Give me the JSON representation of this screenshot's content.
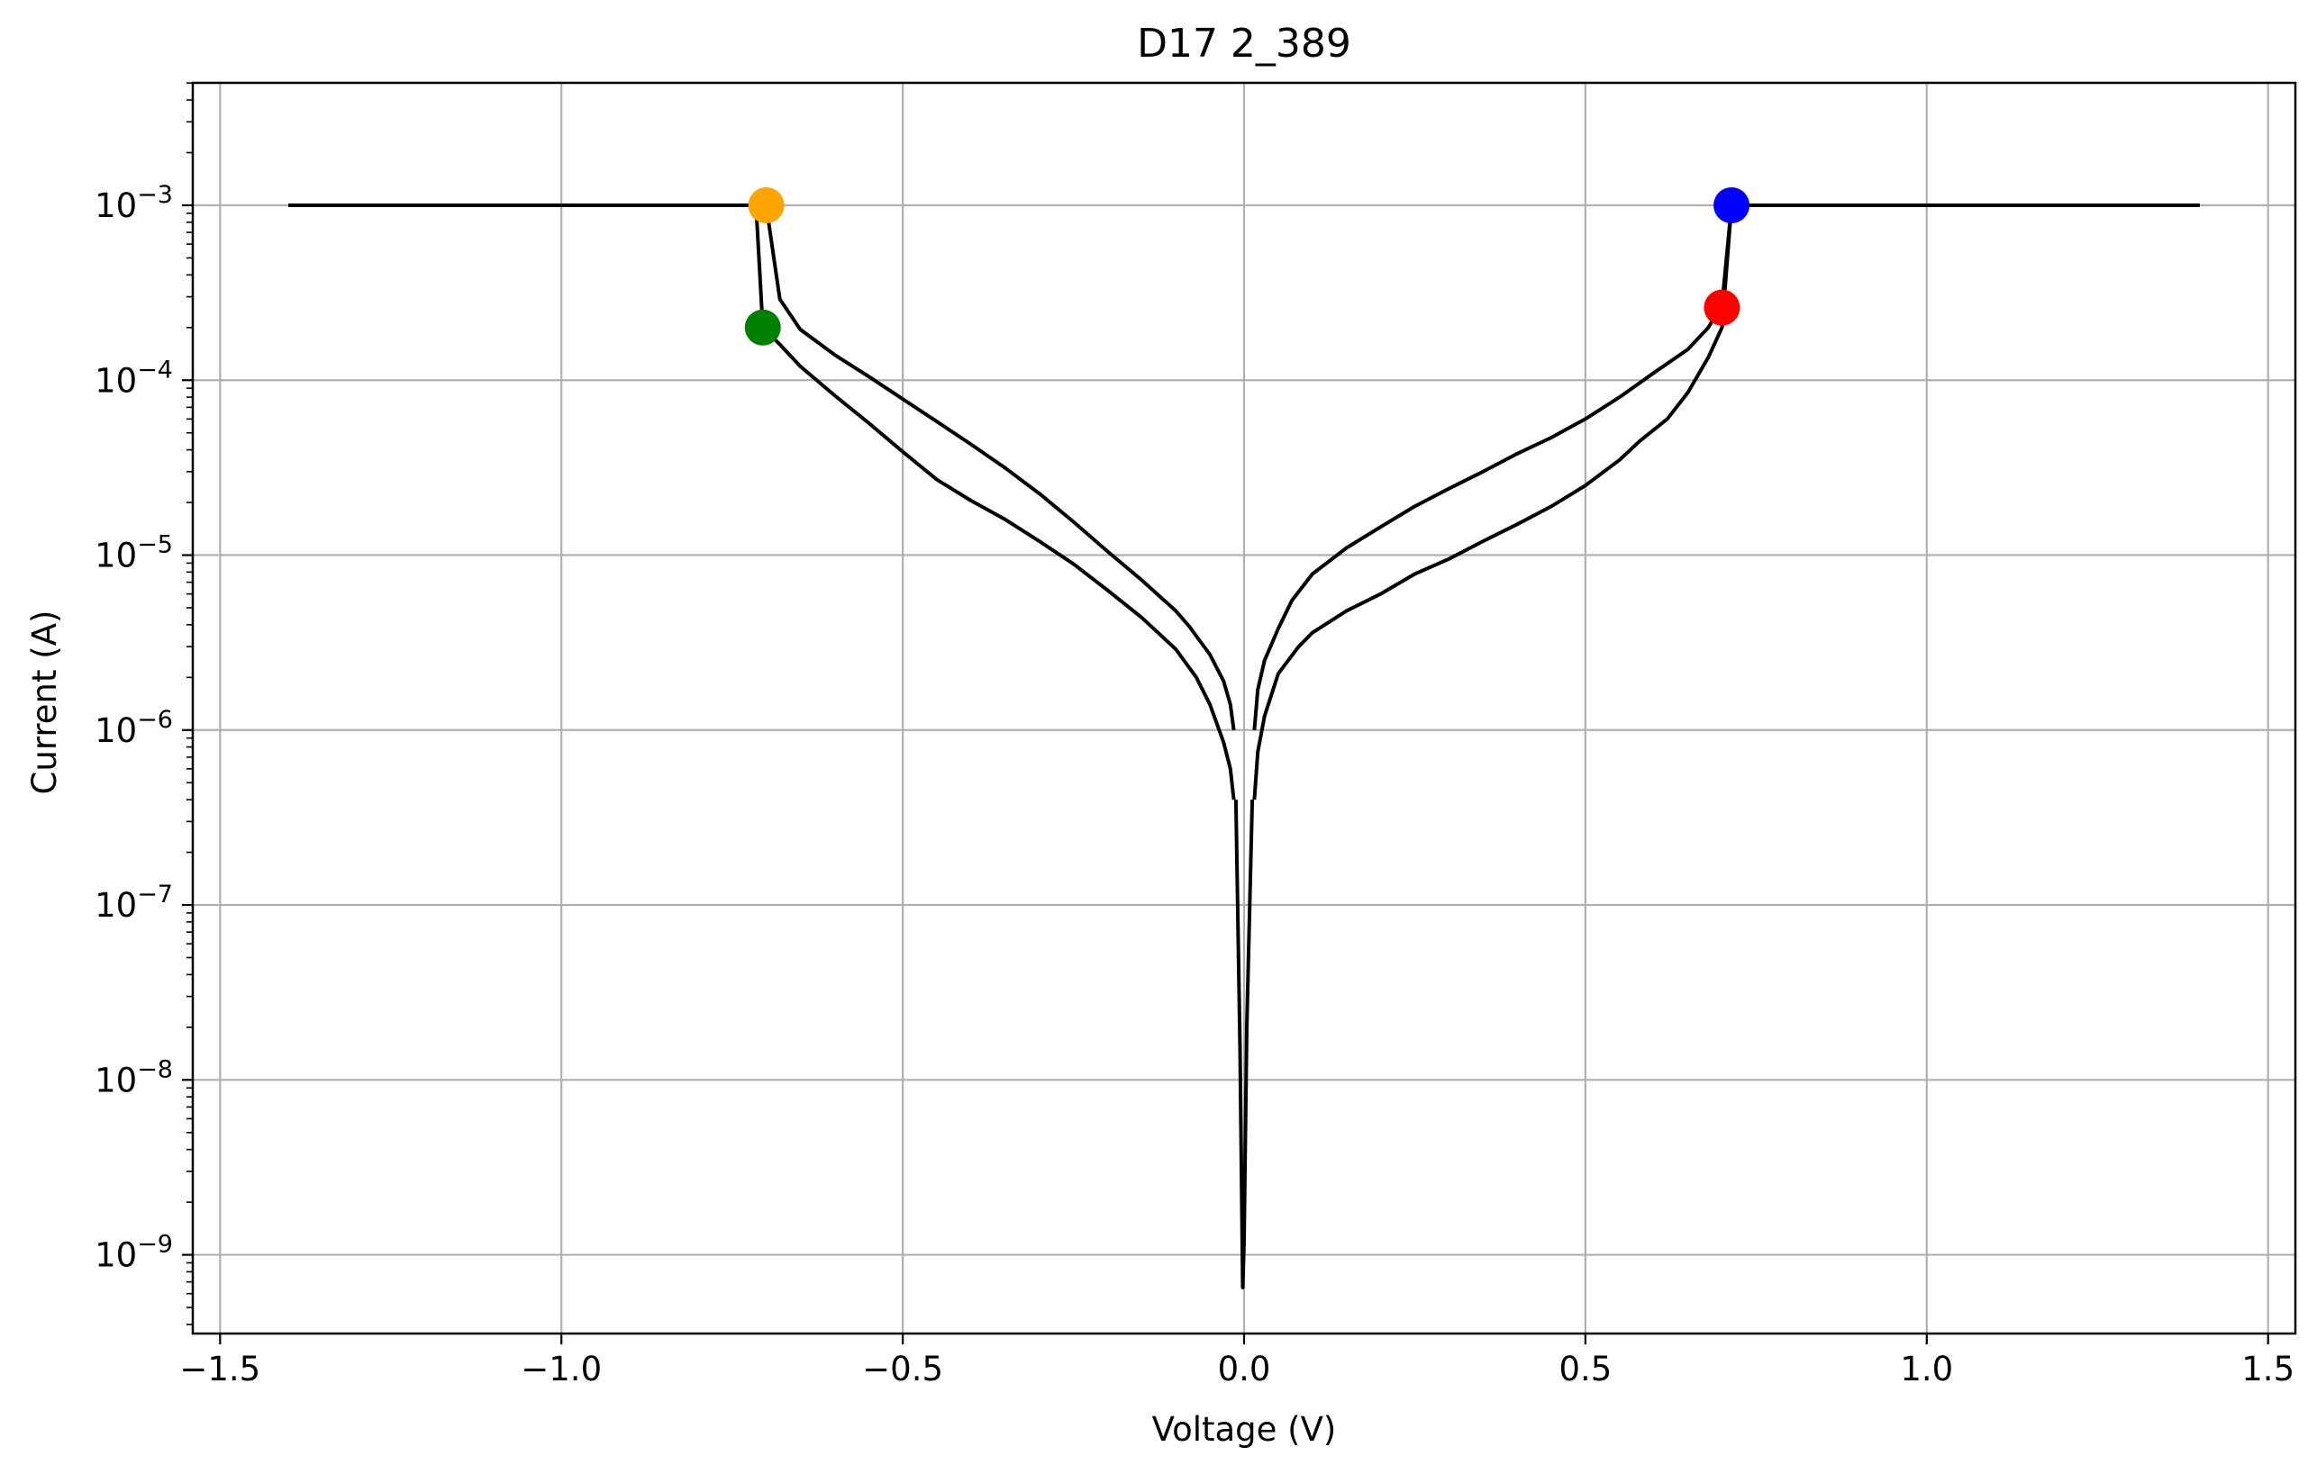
{
  "chart_data": {
    "type": "line",
    "title": "D17 2_389",
    "xlabel": "Voltage (V)",
    "ylabel": "Current (A)",
    "xlim": [
      -1.54,
      1.54
    ],
    "ylim_log10": [
      -9.45,
      -2.3
    ],
    "y_scale": "log",
    "grid": true,
    "x_ticks": [
      {
        "value": -1.5,
        "label": "−1.5"
      },
      {
        "value": -1.0,
        "label": "−1.0"
      },
      {
        "value": -0.5,
        "label": "−0.5"
      },
      {
        "value": 0.0,
        "label": "0.0"
      },
      {
        "value": 0.5,
        "label": "0.5"
      },
      {
        "value": 1.0,
        "label": "1.0"
      },
      {
        "value": 1.5,
        "label": "1.5"
      }
    ],
    "y_ticks": [
      {
        "exp": -3,
        "base": "10",
        "sup": "−3"
      },
      {
        "exp": -4,
        "base": "10",
        "sup": "−4"
      },
      {
        "exp": -5,
        "base": "10",
        "sup": "−5"
      },
      {
        "exp": -6,
        "base": "10",
        "sup": "−6"
      },
      {
        "exp": -7,
        "base": "10",
        "sup": "−7"
      },
      {
        "exp": -8,
        "base": "10",
        "sup": "−8"
      },
      {
        "exp": -9,
        "base": "10",
        "sup": "−9"
      }
    ],
    "series": [
      {
        "color": "#000000",
        "points": [
          [
            1.4,
            0.001
          ],
          [
            1.2,
            0.001
          ],
          [
            1.0,
            0.001
          ],
          [
            0.8,
            0.001
          ],
          [
            0.714,
            0.001
          ],
          [
            0.7,
            0.00027
          ],
          [
            0.68,
            0.0002
          ],
          [
            0.65,
            0.00015
          ],
          [
            0.6,
            0.00011
          ],
          [
            0.55,
            8e-05
          ],
          [
            0.5,
            6e-05
          ],
          [
            0.45,
            4.7e-05
          ],
          [
            0.4,
            3.8e-05
          ],
          [
            0.35,
            3e-05
          ],
          [
            0.3,
            2.4e-05
          ],
          [
            0.25,
            1.9e-05
          ],
          [
            0.2,
            1.45e-05
          ],
          [
            0.15,
            1.1e-05
          ],
          [
            0.1,
            7.8e-06
          ],
          [
            0.07,
            5.5e-06
          ],
          [
            0.05,
            3.8e-06
          ],
          [
            0.03,
            2.5e-06
          ],
          [
            0.02,
            1.7e-06
          ],
          [
            0.015,
            1e-06
          ]
        ]
      },
      {
        "color": "#000000",
        "points": [
          [
            0.015,
            4e-07
          ],
          [
            0.02,
            7.5e-07
          ],
          [
            0.03,
            1.2e-06
          ],
          [
            0.05,
            2.1e-06
          ],
          [
            0.08,
            3e-06
          ],
          [
            0.1,
            3.6e-06
          ],
          [
            0.15,
            4.8e-06
          ],
          [
            0.2,
            6e-06
          ],
          [
            0.25,
            7.8e-06
          ],
          [
            0.3,
            9.5e-06
          ],
          [
            0.35,
            1.2e-05
          ],
          [
            0.4,
            1.5e-05
          ],
          [
            0.45,
            1.9e-05
          ],
          [
            0.5,
            2.5e-05
          ],
          [
            0.55,
            3.5e-05
          ],
          [
            0.58,
            4.5e-05
          ],
          [
            0.62,
            6e-05
          ],
          [
            0.65,
            8.5e-05
          ],
          [
            0.68,
            0.000135
          ],
          [
            0.7,
            0.0002
          ],
          [
            0.714,
            0.001
          ]
        ]
      },
      {
        "color": "#000000",
        "points": [
          [
            -1.4,
            0.001
          ],
          [
            -1.2,
            0.001
          ],
          [
            -1.0,
            0.001
          ],
          [
            -0.8,
            0.001
          ],
          [
            -0.715,
            0.001
          ],
          [
            -0.705,
            0.0002
          ],
          [
            -0.68,
            0.00016
          ],
          [
            -0.65,
            0.00012
          ],
          [
            -0.6,
            8.2e-05
          ],
          [
            -0.55,
            5.7e-05
          ],
          [
            -0.5,
            3.9e-05
          ],
          [
            -0.45,
            2.7e-05
          ],
          [
            -0.4,
            2.05e-05
          ],
          [
            -0.35,
            1.6e-05
          ],
          [
            -0.3,
            1.2e-05
          ],
          [
            -0.25,
            8.9e-06
          ],
          [
            -0.2,
            6.3e-06
          ],
          [
            -0.15,
            4.4e-06
          ],
          [
            -0.1,
            2.9e-06
          ],
          [
            -0.07,
            2e-06
          ],
          [
            -0.05,
            1.4e-06
          ],
          [
            -0.03,
            8.5e-07
          ],
          [
            -0.02,
            6e-07
          ],
          [
            -0.015,
            4e-07
          ]
        ]
      },
      {
        "color": "#000000",
        "points": [
          [
            -0.015,
            1e-06
          ],
          [
            -0.02,
            1.4e-06
          ],
          [
            -0.03,
            1.9e-06
          ],
          [
            -0.05,
            2.7e-06
          ],
          [
            -0.08,
            3.9e-06
          ],
          [
            -0.1,
            4.8e-06
          ],
          [
            -0.15,
            7.2e-06
          ],
          [
            -0.2,
            1.05e-05
          ],
          [
            -0.25,
            1.55e-05
          ],
          [
            -0.3,
            2.25e-05
          ],
          [
            -0.35,
            3.15e-05
          ],
          [
            -0.4,
            4.3e-05
          ],
          [
            -0.45,
            5.8e-05
          ],
          [
            -0.5,
            7.8e-05
          ],
          [
            -0.55,
            0.000105
          ],
          [
            -0.6,
            0.00014
          ],
          [
            -0.65,
            0.000195
          ],
          [
            -0.68,
            0.00029
          ],
          [
            -0.7,
            0.001
          ]
        ]
      },
      {
        "color": "#000000",
        "points": [
          [
            -0.012,
            4e-07
          ],
          [
            -0.006,
            1.5e-08
          ],
          [
            -0.002,
            6.5e-10
          ],
          [
            0.0,
            1.2e-09
          ],
          [
            0.004,
            2e-08
          ],
          [
            0.012,
            4e-07
          ]
        ]
      }
    ],
    "markers": [
      {
        "x": 0.714,
        "y": 0.001,
        "color": "#0000ff"
      },
      {
        "x": 0.7,
        "y": 0.00026,
        "color": "#ff0000"
      },
      {
        "x": -0.7,
        "y": 0.001,
        "color": "#ffa500"
      },
      {
        "x": -0.705,
        "y": 0.0002,
        "color": "#008000"
      }
    ]
  }
}
